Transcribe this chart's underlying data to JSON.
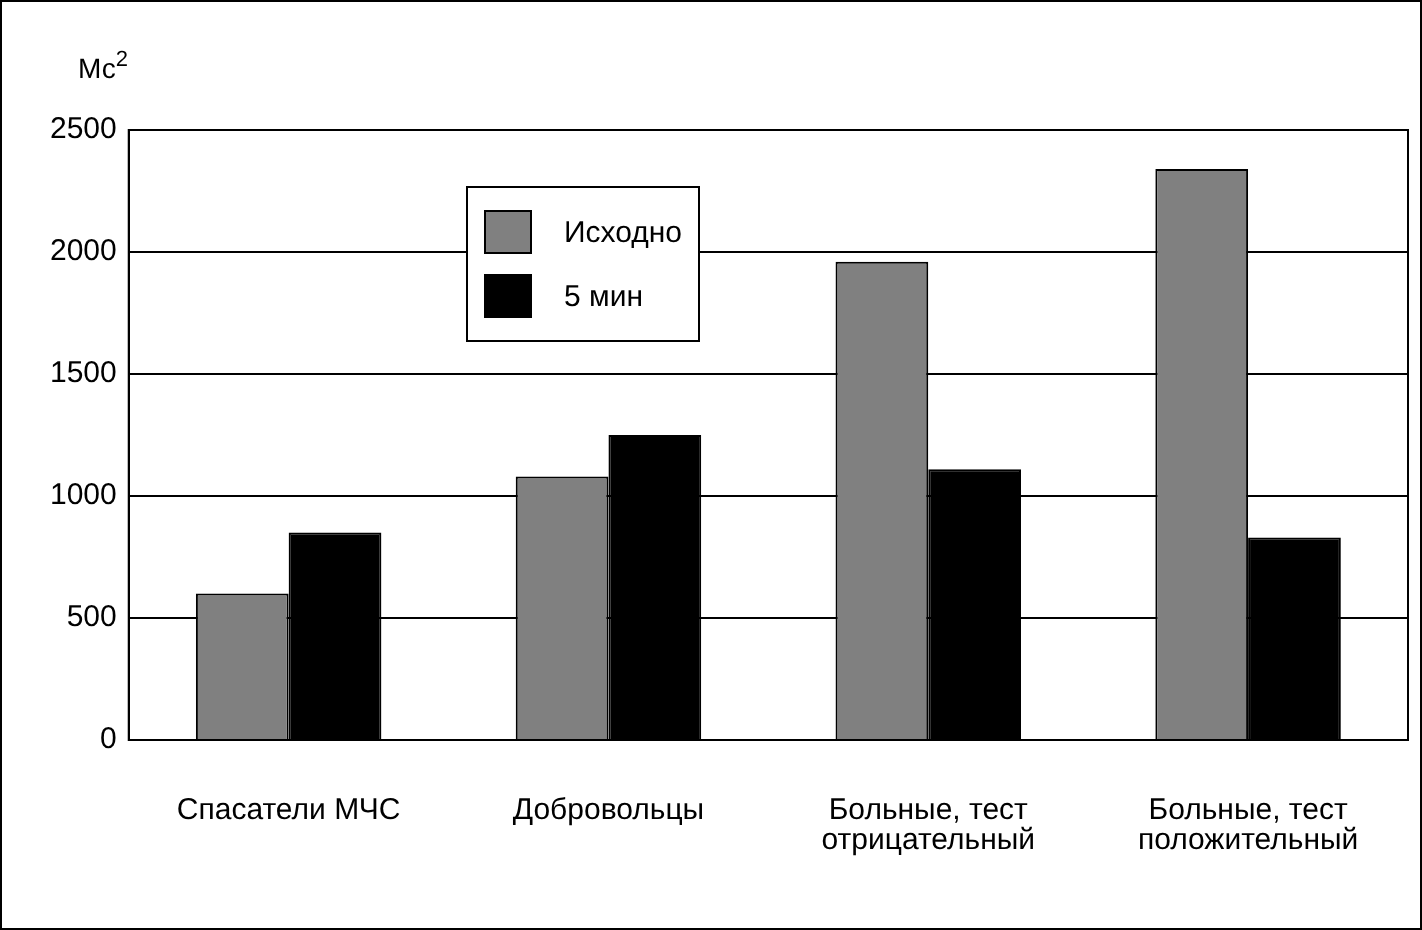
{
  "chart_data": {
    "type": "bar",
    "ylabel": "Мс$^{2}$",
    "categories": [
      "Спасатели МЧС",
      "Добровольцы",
      "Больные, тест отрицательный",
      "Больные, тест положительный"
    ],
    "series": [
      {
        "name": "Исходно",
        "color": "#808080",
        "values": [
          600,
          1080,
          1960,
          2340
        ]
      },
      {
        "name": "5 мин",
        "color": "#000000",
        "values": [
          850,
          1250,
          1110,
          830
        ]
      }
    ],
    "ylim": [
      0,
      2500
    ],
    "yticks": [
      0,
      500,
      1000,
      1500,
      2000,
      2500
    ],
    "grid": "y",
    "legend": "top left"
  }
}
